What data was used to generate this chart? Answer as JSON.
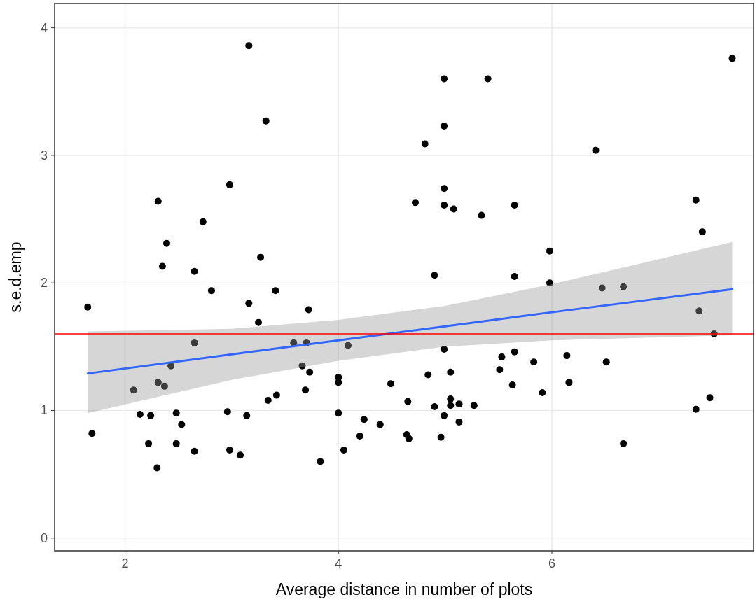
{
  "chart_data": {
    "type": "scatter",
    "xlabel": "Average distance in number of plots",
    "ylabel": "s.e.d.emp",
    "xlim": [
      1.34,
      7.89
    ],
    "ylim": [
      -0.1,
      4.19
    ],
    "xticks": [
      2,
      4,
      6
    ],
    "yticks": [
      0,
      1,
      2,
      3,
      4
    ],
    "grid": true,
    "series": [
      {
        "color": "#000000",
        "marker": "circle",
        "x": [
          1.65,
          1.69,
          2.08,
          2.14,
          2.24,
          2.22,
          2.3,
          2.31,
          2.31,
          2.35,
          2.37,
          2.39,
          2.43,
          2.48,
          2.53,
          2.48,
          2.65,
          2.65,
          2.65,
          2.73,
          2.81,
          2.96,
          2.98,
          2.98,
          3.08,
          3.14,
          3.16,
          3.16,
          3.27,
          3.25,
          3.32,
          3.34,
          3.42,
          3.41,
          3.58,
          3.7,
          3.66,
          3.69,
          3.73,
          3.72,
          3.83,
          4.0,
          4.0,
          4.0,
          4.09,
          4.05,
          4.24,
          4.2,
          4.39,
          4.49,
          4.65,
          4.64,
          4.66,
          4.84,
          4.9,
          4.96,
          4.99,
          5.05,
          5.05,
          5.05,
          5.13,
          5.27,
          5.13,
          4.99,
          4.99,
          4.99,
          4.81,
          4.99,
          4.72,
          4.99,
          5.08,
          5.34,
          5.4,
          4.9,
          5.53,
          5.65,
          5.51,
          5.83,
          5.63,
          5.91,
          5.65,
          5.65,
          5.98,
          5.98,
          6.14,
          6.51,
          6.16,
          6.41,
          6.47,
          6.67,
          6.67,
          7.35,
          7.41,
          7.38,
          7.52,
          7.35,
          7.48,
          7.69
        ],
        "values": [
          1.81,
          0.82,
          1.16,
          0.97,
          0.96,
          0.74,
          0.55,
          2.64,
          1.22,
          2.13,
          1.19,
          2.31,
          1.35,
          0.98,
          0.89,
          0.74,
          2.09,
          1.53,
          0.68,
          2.48,
          1.94,
          0.99,
          2.77,
          0.69,
          0.65,
          0.96,
          1.84,
          3.86,
          2.2,
          1.69,
          3.27,
          1.08,
          1.12,
          1.94,
          1.53,
          1.53,
          1.35,
          1.16,
          1.3,
          1.79,
          0.6,
          1.26,
          1.22,
          0.98,
          1.51,
          0.69,
          0.93,
          0.8,
          0.89,
          1.21,
          1.07,
          0.81,
          0.78,
          1.28,
          1.03,
          0.79,
          0.96,
          1.3,
          1.09,
          1.04,
          1.05,
          1.04,
          0.91,
          1.48,
          3.6,
          3.23,
          3.09,
          2.74,
          2.63,
          2.61,
          2.58,
          2.53,
          3.6,
          2.06,
          1.42,
          1.46,
          1.32,
          1.38,
          1.2,
          1.14,
          2.61,
          2.05,
          2.25,
          2.0,
          1.43,
          1.38,
          1.22,
          3.04,
          1.96,
          1.97,
          0.74,
          2.65,
          2.4,
          1.78,
          1.6,
          1.01,
          1.1,
          3.76
        ]
      },
      {
        "type": "line",
        "color": "#3366ff",
        "x": [
          1.65,
          3,
          4,
          5,
          6,
          7.69
        ],
        "values": [
          1.29,
          1.44,
          1.55,
          1.66,
          1.77,
          1.95
        ],
        "lower": [
          0.98,
          1.24,
          1.39,
          1.5,
          1.55,
          1.59
        ],
        "upper": [
          1.62,
          1.64,
          1.71,
          1.82,
          1.99,
          2.32
        ]
      }
    ],
    "ref_lines": [
      {
        "axis": "y",
        "value": 1.6,
        "color": "#ff0000"
      }
    ]
  }
}
